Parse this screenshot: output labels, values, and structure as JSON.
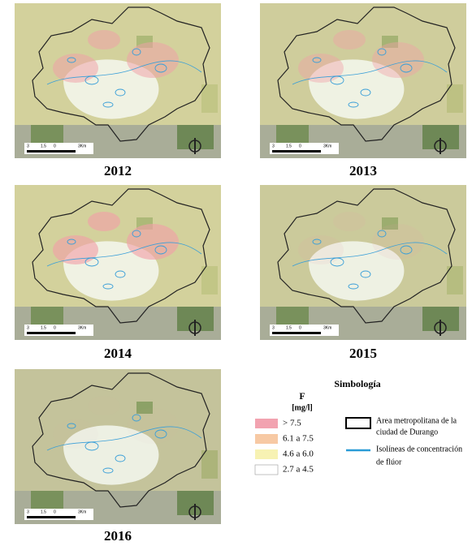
{
  "maps": [
    {
      "year": "2012",
      "scale": [
        "3",
        "1.5",
        "0",
        "3Km"
      ]
    },
    {
      "year": "2013",
      "scale": [
        "3",
        "1.5",
        "0",
        "3Km"
      ]
    },
    {
      "year": "2014",
      "scale": [
        "3",
        "1.5",
        "0",
        "3Km"
      ]
    },
    {
      "year": "2015",
      "scale": [
        "3",
        "1.5",
        "0",
        "3Km"
      ]
    },
    {
      "year": "2016",
      "scale": [
        "3",
        "1.5",
        "0",
        "3Km"
      ]
    }
  ],
  "legend": {
    "title": "Simbología",
    "variable": "F",
    "unit": "[mg/l]",
    "classes": [
      ">  7.5",
      "6.1 a 7.5",
      "4.6 a 6.0",
      "2.7 a 4.5"
    ],
    "boundary": [
      "Area metropolitana de la",
      "ciudad de Durango"
    ],
    "isolines": [
      "Isolíneas de concentración",
      "de flúor"
    ]
  }
}
